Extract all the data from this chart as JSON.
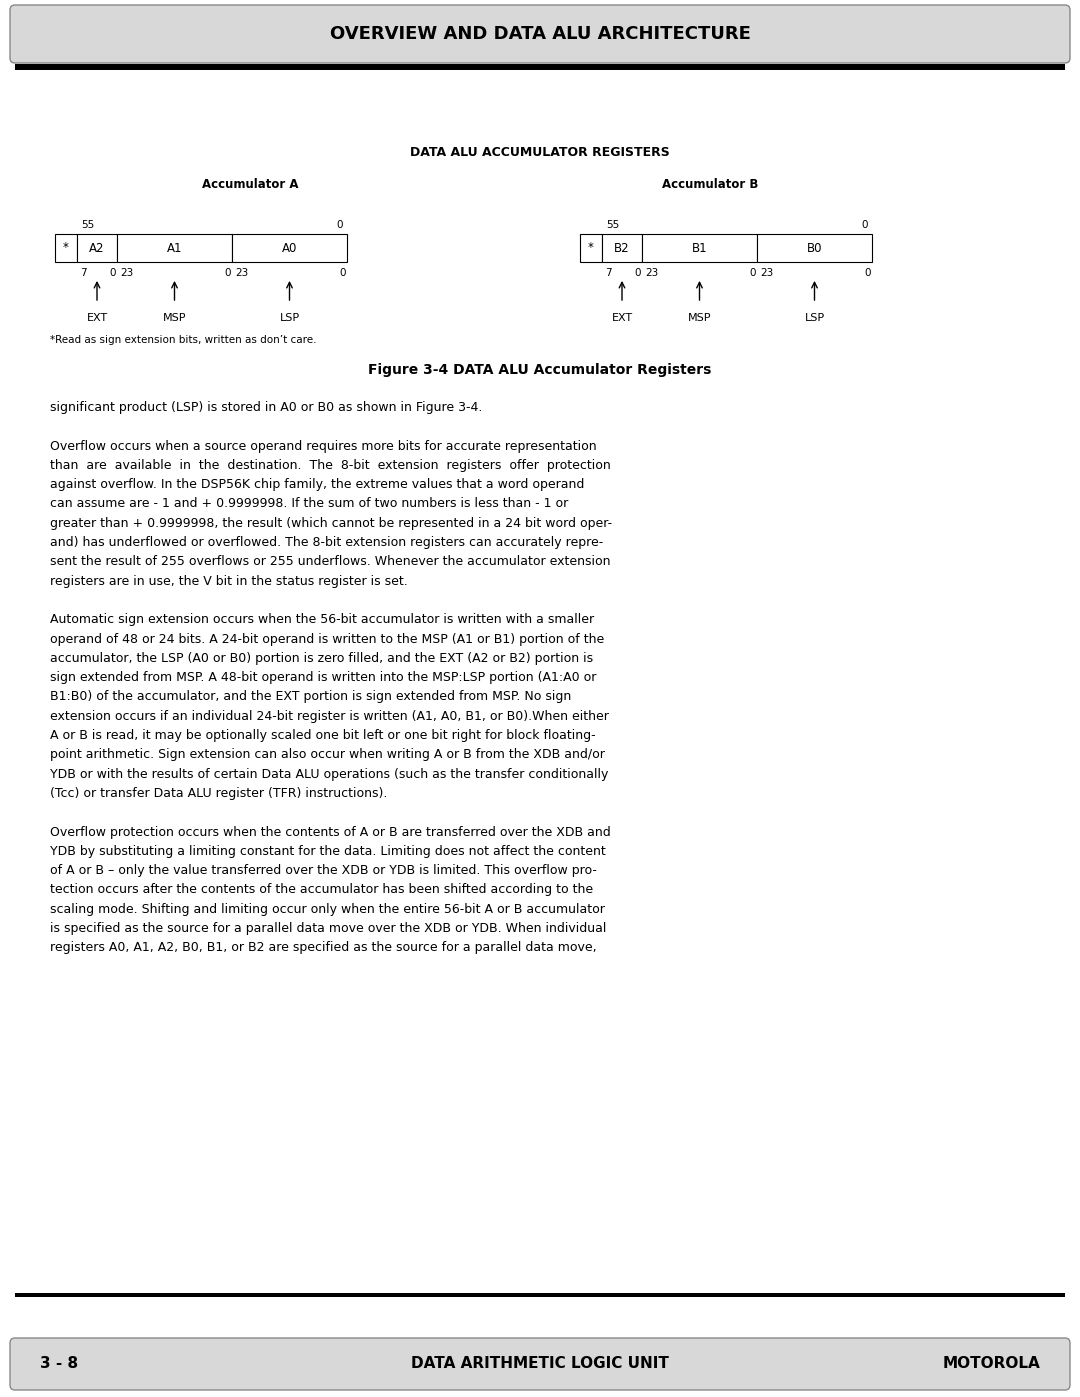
{
  "page_width": 10.8,
  "page_height": 13.97,
  "dpi": 100,
  "bg_color": "#ffffff",
  "header_bg": "#d8d8d8",
  "header_text": "OVERVIEW AND DATA ALU ARCHITECTURE",
  "header_fontsize": 13,
  "footer_bg": "#d8d8d8",
  "footer_left": "3 - 8",
  "footer_center": "DATA ARITHMETIC LOGIC UNIT",
  "footer_right": "MOTOROLA",
  "footer_fontsize": 11,
  "diagram_title": "DATA ALU ACCUMULATOR REGISTERS",
  "acc_a_label": "Accumulator A",
  "acc_b_label": "Accumulator B",
  "figure_caption": "Figure 3-4 DATA ALU Accumulator Registers",
  "footnote": "*Read as sign extension bits, written as don’t care.",
  "para1": "significant product (LSP) is stored in A0 or B0 as shown in Figure 3-4.",
  "para2_lines": [
    "Overflow occurs when a source operand requires more bits for accurate representation",
    "than  are  available  in  the  destination.  The  8-bit  extension  registers  offer  protection",
    "against overflow. In the DSP56K chip family, the extreme values that a word operand",
    "can assume are - 1 and + 0.9999998. If the sum of two numbers is less than - 1 or",
    "greater than + 0.9999998, the result (which cannot be represented in a 24 bit word oper-",
    "and) has underflowed or overflowed. The 8-bit extension registers can accurately repre-",
    "sent the result of 255 overflows or 255 underflows. Whenever the accumulator extension",
    "registers are in use, the V bit in the status register is set."
  ],
  "para3_lines": [
    "Automatic sign extension occurs when the 56-bit accumulator is written with a smaller",
    "operand of 48 or 24 bits. A 24-bit operand is written to the MSP (A1 or B1) portion of the",
    "accumulator, the LSP (A0 or B0) portion is zero filled, and the EXT (A2 or B2) portion is",
    "sign extended from MSP. A 48-bit operand is written into the MSP:LSP portion (A1:A0 or",
    "B1:B0) of the accumulator, and the EXT portion is sign extended from MSP. No sign",
    "extension occurs if an individual 24-bit register is written (A1, A0, B1, or B0).When either",
    "A or B is read, it may be optionally scaled one bit left or one bit right for block floating-",
    "point arithmetic. Sign extension can also occur when writing A or B from the XDB and/or",
    "YDB or with the results of certain Data ALU operations (such as the transfer conditionally",
    "(Tcc) or transfer Data ALU register (TFR) instructions)."
  ],
  "para4_lines": [
    "Overflow protection occurs when the contents of A or B are transferred over the XDB and",
    "YDB by substituting a limiting constant for the data. Limiting does not affect the content",
    "of A or B – only the value transferred over the XDB or YDB is limited. This overflow pro-",
    "tection occurs after the contents of the accumulator has been shifted according to the",
    "scaling mode. Shifting and limiting occur only when the entire 56-bit A or B accumulator",
    "is specified as the source for a parallel data move over the XDB or YDB. When individual",
    "registers A0, A1, A2, B0, B1, or B2 are specified as the source for a parallel data move,"
  ]
}
